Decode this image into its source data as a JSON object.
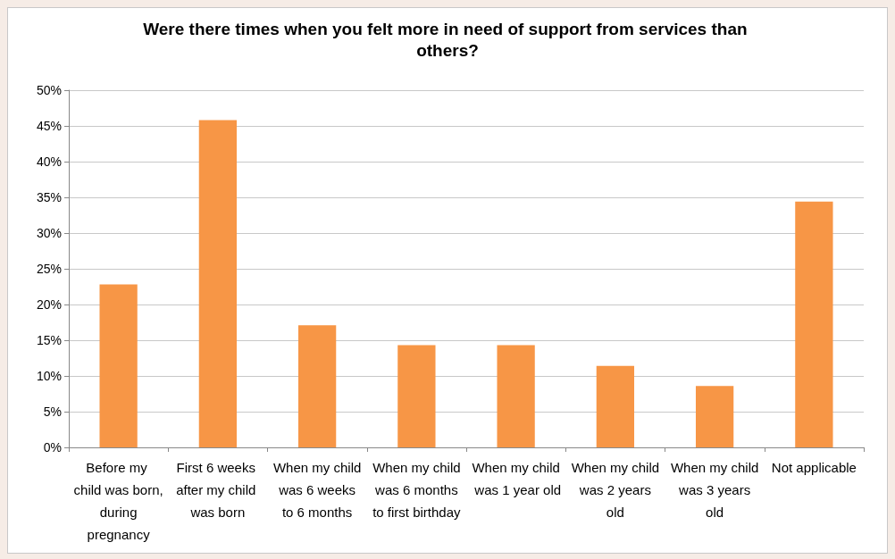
{
  "chart_data": {
    "type": "bar",
    "title": "Were there times when you felt more in need of support from services than others?",
    "categories": [
      "Before my child was born, during pregnancy",
      "First 6 weeks after my child was born",
      "When my child was 6 weeks to 6 months",
      "When my child was 6 months to first birthday",
      "When my child was 1 year old",
      "When my child was 2 years old",
      "When my child was 3 years old",
      "Not applicable"
    ],
    "values": [
      22.8,
      45.8,
      17.1,
      14.3,
      14.3,
      11.4,
      8.6,
      34.4
    ],
    "color": "#f79646",
    "ylim": [
      0,
      50
    ],
    "yticks": [
      {
        "value": 0,
        "label": "0%"
      },
      {
        "value": 5,
        "label": "5%"
      },
      {
        "value": 10,
        "label": "10%"
      },
      {
        "value": 15,
        "label": "15%"
      },
      {
        "value": 20,
        "label": "20%"
      },
      {
        "value": 25,
        "label": "25%"
      },
      {
        "value": 30,
        "label": "30%"
      },
      {
        "value": 35,
        "label": "35%"
      },
      {
        "value": 40,
        "label": "40%"
      },
      {
        "value": 45,
        "label": "45%"
      },
      {
        "value": 50,
        "label": "50%"
      }
    ],
    "grid": "y"
  }
}
